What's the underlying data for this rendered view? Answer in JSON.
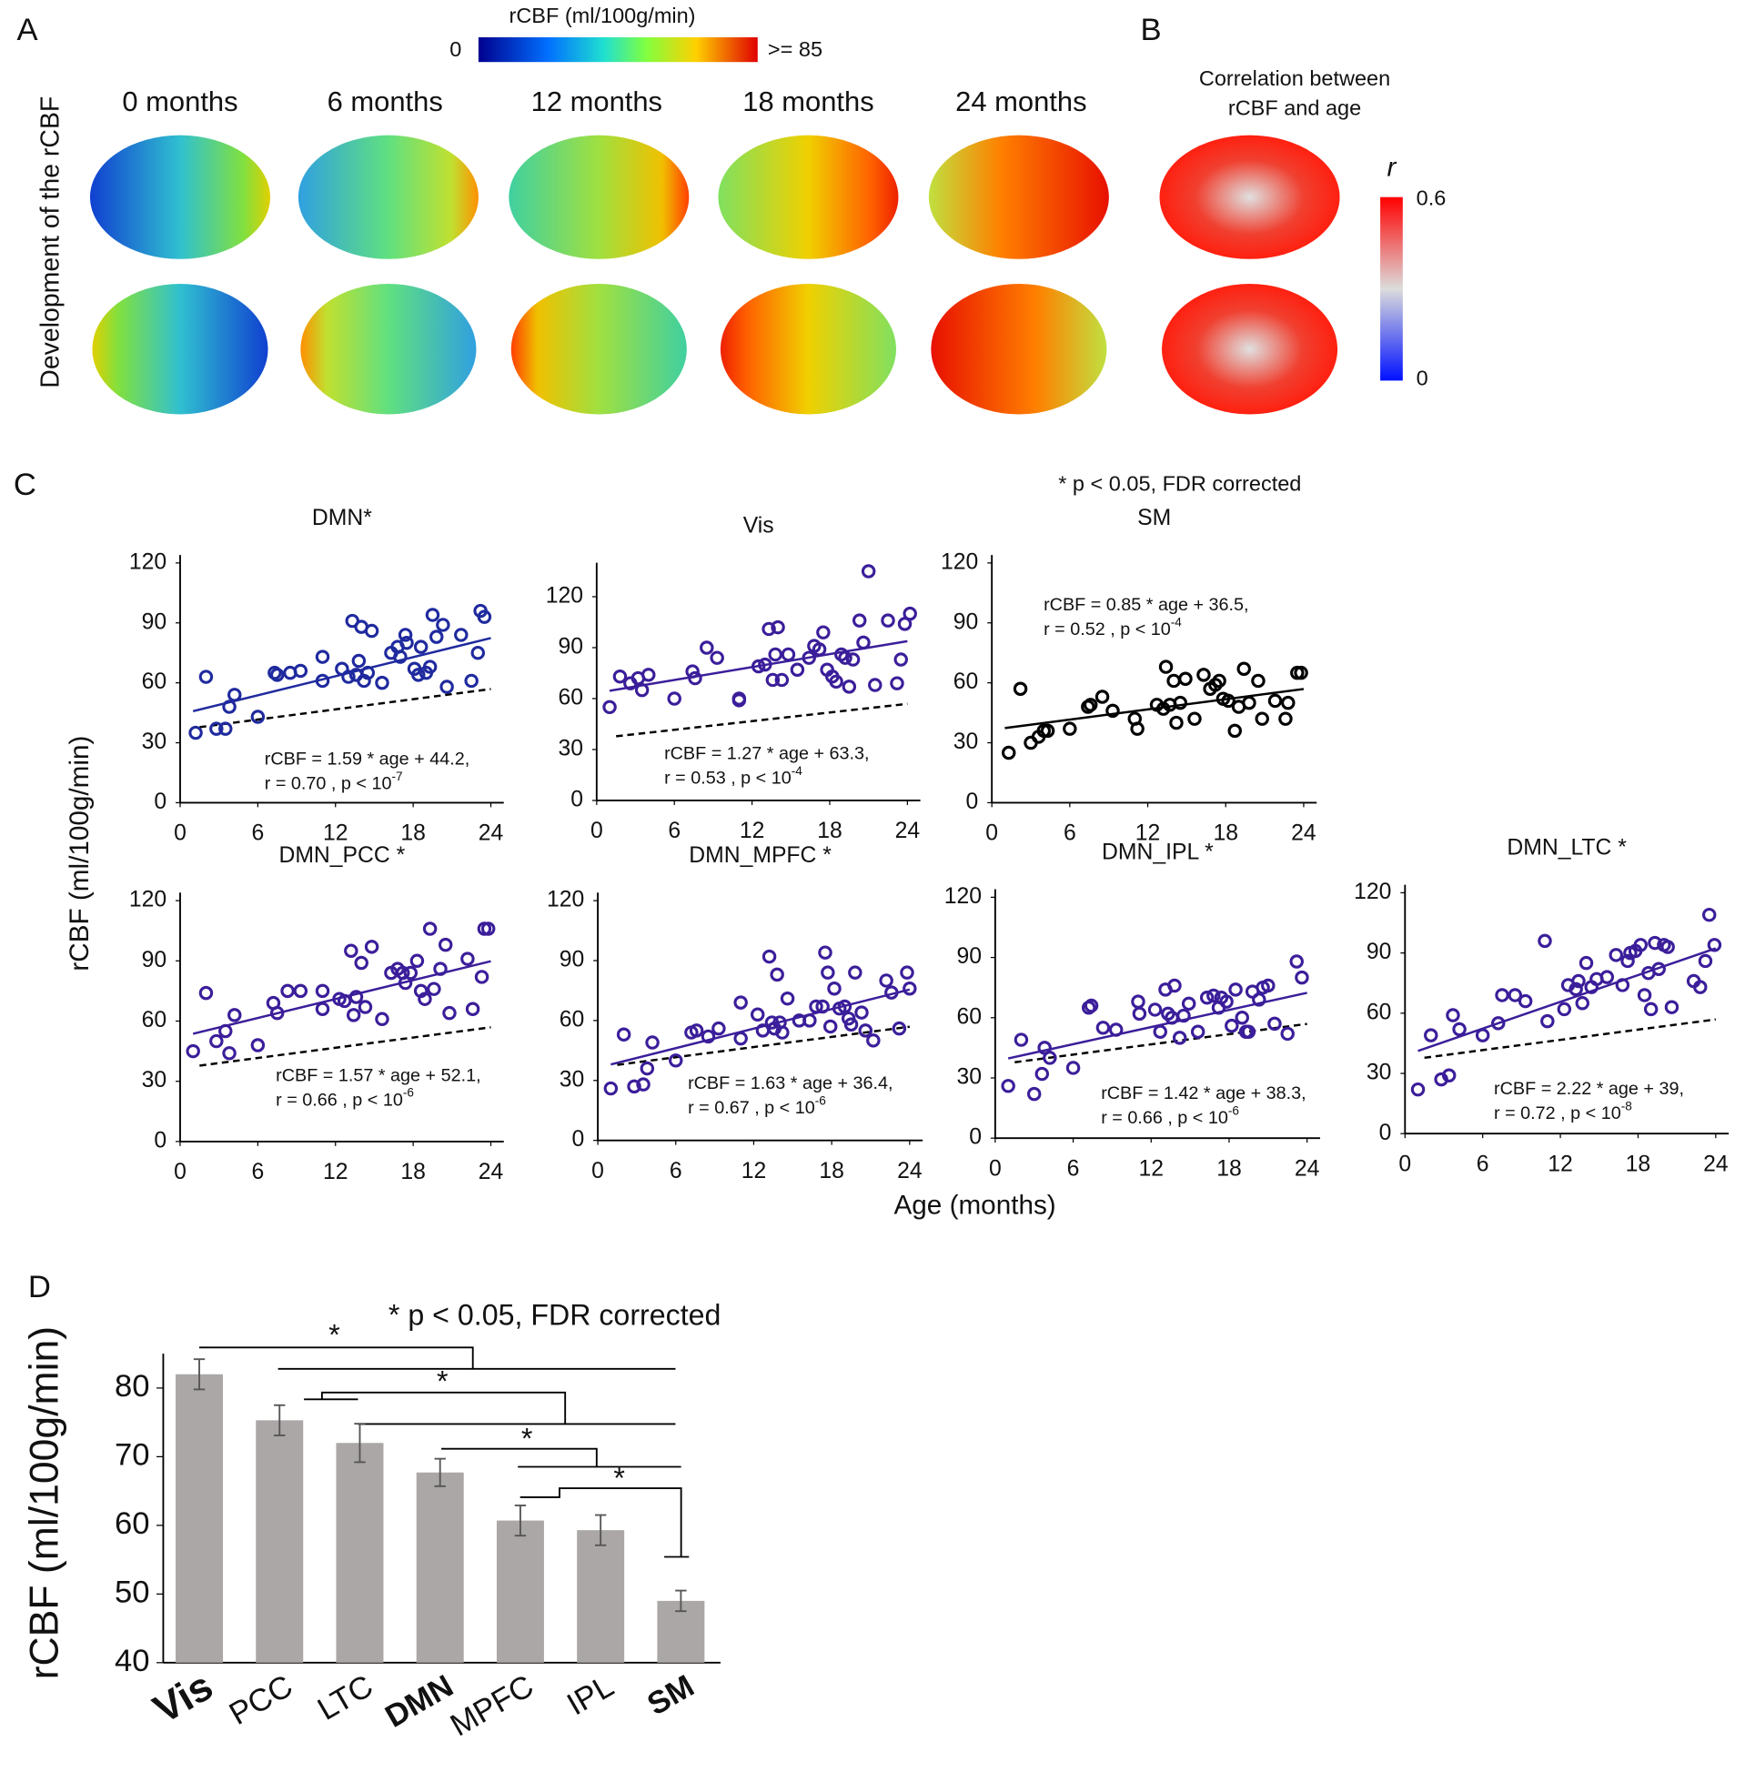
{
  "figure": {
    "panel_a": {
      "letter": "A",
      "colorbar_title": "rCBF (ml/100g/min)",
      "colorbar_min": "0",
      "colorbar_max": ">= 85",
      "ages": [
        "0 months",
        "6 months",
        "12 months",
        "18 months",
        "24 months"
      ],
      "row_label": "Development of the rCBF"
    },
    "panel_b": {
      "letter": "B",
      "title_line1": "Correlation between",
      "title_line2": "rCBF and age",
      "colorbar_symbol": "r",
      "colorbar_max": "0.6",
      "colorbar_min": "0"
    },
    "panel_c": {
      "letter": "C",
      "note": "* p < 0.05, FDR corrected",
      "ylabel": "rCBF (ml/100g/min)",
      "xlabel": "Age (months)"
    },
    "panel_d": {
      "letter": "D"
    }
  },
  "chart_data": [
    {
      "type": "scatter",
      "title": "DMN*",
      "color": "#1f2a9e",
      "x": [
        1.2,
        2,
        2.8,
        3.5,
        3.8,
        4.2,
        6,
        7.3,
        7.5,
        8.5,
        9.3,
        11,
        11,
        12.5,
        13,
        13.3,
        13.6,
        13.8,
        14,
        14.2,
        14.5,
        14.8,
        15.6,
        16.3,
        16.8,
        17,
        17.4,
        17.5,
        18.1,
        18.4,
        18.6,
        19,
        19.3,
        19.5,
        19.8,
        20.3,
        20.6,
        21.7,
        22.5,
        23,
        23.2,
        23.5
      ],
      "y": [
        35,
        63,
        37,
        37,
        48,
        54,
        43,
        65,
        64,
        65,
        66,
        73,
        61,
        67,
        63,
        91,
        64,
        71,
        88,
        61,
        65,
        86,
        60,
        75,
        78,
        73,
        84,
        80,
        67,
        64,
        78,
        65,
        68,
        94,
        83,
        89,
        58,
        84,
        61,
        75,
        96,
        93
      ],
      "fit_line": {
        "x": [
          1,
          24
        ],
        "y": [
          45.8,
          82.4
        ]
      },
      "reference_line": {
        "x": [
          1.5,
          24
        ],
        "y": [
          37.8,
          56.9
        ]
      },
      "annotation": {
        "equation": "rCBF = 1.59 * age + 44.2,",
        "stats": "r = 0.70 , p < 10",
        "exponent": "-7"
      },
      "xlim": [
        0,
        25
      ],
      "ylim": [
        0,
        124
      ],
      "xticks": [
        0,
        6,
        12,
        18,
        24
      ],
      "yticks": [
        0,
        30,
        60,
        90,
        120
      ]
    },
    {
      "type": "scatter",
      "title": "Vis",
      "color": "#3b1e9a",
      "x": [
        1,
        1.8,
        2.6,
        3.2,
        3.5,
        4,
        6,
        7.4,
        7.6,
        8.5,
        9.3,
        11,
        11,
        12.5,
        13,
        13.3,
        13.6,
        13.8,
        14,
        14.3,
        14.8,
        15.5,
        16.4,
        16.8,
        17.2,
        17.5,
        17.8,
        18.2,
        18.5,
        18.9,
        19.2,
        19.5,
        19.8,
        20.3,
        20.6,
        21,
        21.5,
        22.5,
        23.2,
        23.5,
        23.8,
        24.2
      ],
      "y": [
        55,
        73,
        69,
        72,
        65,
        74,
        60,
        76,
        72,
        90,
        84,
        60,
        59,
        79,
        80,
        101,
        71,
        86,
        102,
        71,
        86,
        77,
        84,
        91,
        89,
        99,
        77,
        73,
        70,
        86,
        84,
        67,
        83,
        106,
        93,
        135,
        68,
        106,
        69,
        83,
        104,
        110
      ],
      "fit_line": {
        "x": [
          1,
          24
        ],
        "y": [
          64.6,
          93.8
        ]
      },
      "reference_line": {
        "x": [
          1.5,
          24
        ],
        "y": [
          37.8,
          56.9
        ]
      },
      "annotation": {
        "equation": "rCBF = 1.27 * age + 63.3,",
        "stats": "r = 0.53 , p < 10",
        "exponent": "-4"
      },
      "xlim": [
        0,
        25
      ],
      "ylim": [
        0,
        140
      ],
      "xticks": [
        0,
        6,
        12,
        18,
        24
      ],
      "yticks": [
        0,
        30,
        60,
        90,
        120
      ]
    },
    {
      "type": "scatter",
      "title": "SM",
      "color": "#000000",
      "x": [
        1.3,
        2.2,
        3,
        3.6,
        4,
        4.3,
        6,
        7.4,
        7.6,
        8.5,
        9.3,
        11,
        11.2,
        12.7,
        13.2,
        13.4,
        13.7,
        14,
        14.2,
        14.5,
        14.9,
        15.6,
        16.3,
        16.8,
        17.2,
        17.5,
        17.8,
        18.2,
        18.7,
        19,
        19.4,
        19.8,
        20.5,
        20.8,
        21.8,
        22.6,
        22.8,
        23.5,
        23.8
      ],
      "y": [
        25,
        57,
        30,
        33,
        36,
        36,
        37,
        48,
        49,
        53,
        46,
        42,
        37,
        49,
        47,
        68,
        49,
        61,
        40,
        50,
        62,
        42,
        64,
        57,
        59,
        61,
        52,
        51,
        36,
        48,
        67,
        50,
        61,
        42,
        51,
        42,
        50,
        65,
        65
      ],
      "fit_line": {
        "x": [
          1,
          24
        ],
        "y": [
          37.35,
          56.9
        ]
      },
      "reference_line": null,
      "annotation": {
        "equation": "rCBF = 0.85 * age + 36.5,",
        "stats": "r = 0.52 , p < 10",
        "exponent": "-4"
      },
      "xlim": [
        0,
        25
      ],
      "ylim": [
        0,
        124
      ],
      "xticks": [
        0,
        6,
        12,
        18,
        24
      ],
      "yticks": [
        0,
        30,
        60,
        90,
        120
      ]
    },
    {
      "type": "scatter",
      "title": "DMN_PCC *",
      "color": "#3b1e9a",
      "x": [
        1,
        2,
        2.8,
        3.5,
        3.8,
        4.2,
        6,
        7.2,
        7.5,
        8.3,
        9.3,
        11,
        11,
        12.3,
        12.7,
        13.2,
        13.4,
        13.6,
        14,
        14.3,
        14.8,
        15.6,
        16.3,
        16.8,
        17.2,
        17.4,
        17.8,
        18.3,
        18.6,
        18.9,
        19.3,
        19.6,
        20.1,
        20.5,
        20.8,
        22.2,
        22.6,
        23.3,
        23.5,
        23.8
      ],
      "y": [
        45,
        74,
        50,
        55,
        44,
        63,
        48,
        69,
        64,
        75,
        75,
        75,
        66,
        71,
        70,
        95,
        63,
        72,
        89,
        67,
        97,
        61,
        84,
        86,
        84,
        79,
        84,
        90,
        75,
        71,
        106,
        76,
        86,
        98,
        64,
        91,
        66,
        82,
        106,
        106
      ],
      "fit_line": {
        "x": [
          1,
          24
        ],
        "y": [
          53.7,
          89.8
        ]
      },
      "reference_line": {
        "x": [
          1.5,
          24
        ],
        "y": [
          37.8,
          56.9
        ]
      },
      "annotation": {
        "equation": "rCBF = 1.57 * age + 52.1,",
        "stats": "r = 0.66 , p < 10",
        "exponent": "-6"
      },
      "xlim": [
        0,
        25
      ],
      "ylim": [
        0,
        124
      ],
      "xticks": [
        0,
        6,
        12,
        18,
        24
      ],
      "yticks": [
        0,
        30,
        60,
        90,
        120
      ]
    },
    {
      "type": "scatter",
      "title": "DMN_MPFC *",
      "color": "#3b1e9a",
      "x": [
        1,
        2,
        2.8,
        3.5,
        3.8,
        4.2,
        6,
        7.2,
        7.6,
        8.5,
        9.3,
        11,
        11,
        12.3,
        12.7,
        13.2,
        13.4,
        13.6,
        13.8,
        14,
        14.2,
        14.6,
        15.5,
        16.3,
        16.8,
        17.3,
        17.5,
        17.7,
        17.9,
        18.2,
        18.6,
        19,
        19.3,
        19.5,
        19.8,
        20.3,
        20.6,
        21.2,
        22.2,
        22.6,
        23.2,
        23.8,
        24
      ],
      "y": [
        26,
        53,
        27,
        28,
        36,
        49,
        40,
        54,
        55,
        52,
        56,
        69,
        51,
        63,
        55,
        92,
        59,
        56,
        83,
        59,
        54,
        71,
        60,
        60,
        67,
        67,
        94,
        84,
        57,
        76,
        66,
        67,
        61,
        58,
        84,
        64,
        55,
        50,
        80,
        74,
        56,
        84,
        76
      ],
      "fit_line": {
        "x": [
          1,
          24
        ],
        "y": [
          38,
          75.5
        ]
      },
      "reference_line": {
        "x": [
          1.5,
          24
        ],
        "y": [
          37.8,
          56.9
        ]
      },
      "annotation": {
        "equation": "rCBF = 1.63 * age + 36.4,",
        "stats": "r = 0.67 , p < 10",
        "exponent": "-6"
      },
      "xlim": [
        0,
        25
      ],
      "ylim": [
        0,
        124
      ],
      "xticks": [
        0,
        6,
        12,
        18,
        24
      ],
      "yticks": [
        0,
        30,
        60,
        90,
        120
      ]
    },
    {
      "type": "scatter",
      "title": "DMN_IPL *",
      "color": "#3b1e9a",
      "x": [
        1,
        2,
        3,
        3.6,
        3.8,
        4.2,
        6,
        7.2,
        7.4,
        8.3,
        9.3,
        11,
        11.1,
        12.3,
        12.7,
        13.1,
        13.3,
        13.6,
        13.8,
        14.2,
        14.5,
        14.9,
        15.6,
        16.3,
        16.8,
        17.2,
        17.4,
        17.8,
        18.2,
        18.5,
        19,
        19.3,
        19.5,
        19.8,
        20.3,
        20.6,
        21,
        21.5,
        22.5,
        23.2,
        23.6
      ],
      "y": [
        26,
        49,
        22,
        32,
        45,
        40,
        35,
        65,
        66,
        55,
        54,
        68,
        62,
        64,
        53,
        74,
        62,
        60,
        76,
        50,
        61,
        67,
        53,
        70,
        71,
        65,
        70,
        68,
        56,
        74,
        60,
        53,
        53,
        73,
        69,
        75,
        76,
        57,
        52,
        88,
        80
      ],
      "fit_line": {
        "x": [
          1,
          24
        ],
        "y": [
          39.7,
          72.4
        ]
      },
      "reference_line": {
        "x": [
          1.5,
          24
        ],
        "y": [
          37.8,
          56.9
        ]
      },
      "annotation": {
        "equation": "rCBF = 1.42 * age + 38.3,",
        "stats": "r = 0.66 , p < 10",
        "exponent": "-6"
      },
      "xlim": [
        0,
        25
      ],
      "ylim": [
        0,
        124
      ],
      "xticks": [
        0,
        6,
        12,
        18,
        24
      ],
      "yticks": [
        0,
        30,
        60,
        90,
        120
      ]
    },
    {
      "type": "scatter",
      "title": "DMN_LTC *",
      "color": "#3b1e9a",
      "x": [
        1,
        2,
        2.8,
        3.4,
        3.7,
        4.2,
        6,
        7.2,
        7.5,
        8.5,
        9.3,
        10.8,
        11,
        12.3,
        12.6,
        13.2,
        13.4,
        13.7,
        14,
        14.4,
        14.8,
        15.6,
        16.3,
        16.8,
        17.2,
        17.4,
        17.8,
        18.2,
        18.5,
        18.8,
        19,
        19.3,
        19.6,
        20,
        20.3,
        20.6,
        22.3,
        22.8,
        23.2,
        23.5,
        23.9
      ],
      "y": [
        22,
        49,
        27,
        29,
        59,
        52,
        49,
        55,
        69,
        69,
        66,
        96,
        56,
        62,
        74,
        72,
        76,
        65,
        85,
        73,
        77,
        78,
        89,
        74,
        86,
        90,
        91,
        94,
        69,
        80,
        62,
        95,
        82,
        94,
        93,
        63,
        76,
        73,
        86,
        109,
        94
      ],
      "fit_line": {
        "x": [
          1,
          24
        ],
        "y": [
          41.2,
          92.3
        ]
      },
      "reference_line": {
        "x": [
          1.5,
          24
        ],
        "y": [
          37.8,
          56.9
        ]
      },
      "annotation": {
        "equation": "rCBF = 2.22 * age + 39,",
        "stats": "r = 0.72 , p < 10",
        "exponent": "-8"
      },
      "xlim": [
        0,
        25
      ],
      "ylim": [
        0,
        124
      ],
      "xticks": [
        0,
        6,
        12,
        18,
        24
      ],
      "yticks": [
        0,
        30,
        60,
        90,
        120
      ]
    },
    {
      "type": "bar",
      "ylabel": "rCBF (ml/100g/min)",
      "note": "* p < 0.05, FDR corrected",
      "categories": [
        "Vis",
        "PCC",
        "LTC",
        "DMN",
        "MPFC",
        "IPL",
        "SM"
      ],
      "category_bold": [
        true,
        false,
        false,
        true,
        false,
        false,
        true
      ],
      "values": [
        82,
        75.3,
        72,
        67.7,
        60.7,
        59.3,
        49
      ],
      "errors": [
        2.2,
        2.2,
        2.8,
        2,
        2.2,
        2.2,
        1.5
      ],
      "color": "#aaa7a6",
      "error_color": "#555555",
      "significance_marks": [
        "*",
        "*",
        "*",
        "*"
      ],
      "ylim": [
        40,
        85
      ],
      "yticks": [
        40,
        50,
        60,
        70,
        80
      ]
    }
  ]
}
